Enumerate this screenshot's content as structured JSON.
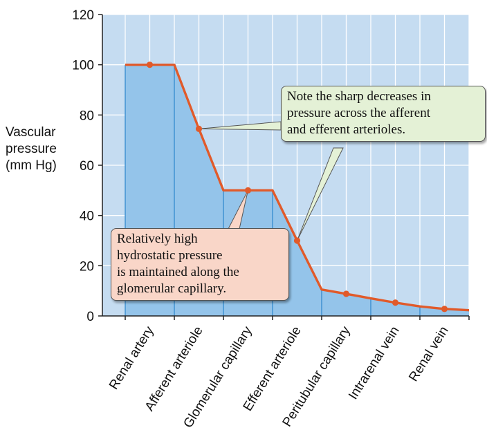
{
  "chart_data": {
    "type": "area",
    "ylabel": [
      "Vascular",
      "pressure",
      "(mm Hg)"
    ],
    "ylim": [
      0,
      120
    ],
    "yticks": [
      0,
      20,
      40,
      60,
      80,
      100,
      120
    ],
    "categories": [
      "Renal artery",
      "Afferent arteriole",
      "Glomerular capillary",
      "Efferent arteriole",
      "Peritubular capillary",
      "Intrarenal vein",
      "Renal vein"
    ],
    "points": [
      {
        "x": 0.0,
        "y": 100
      },
      {
        "x": 0.5,
        "y": 100
      },
      {
        "x": 1.0,
        "y": 100
      },
      {
        "x": 1.5,
        "y": 74.5
      },
      {
        "x": 2.0,
        "y": 50
      },
      {
        "x": 2.5,
        "y": 50
      },
      {
        "x": 3.0,
        "y": 50
      },
      {
        "x": 3.5,
        "y": 30
      },
      {
        "x": 4.0,
        "y": 10.5
      },
      {
        "x": 4.5,
        "y": 8.8
      },
      {
        "x": 5.0,
        "y": 7.0
      },
      {
        "x": 5.5,
        "y": 5.3
      },
      {
        "x": 6.0,
        "y": 3.8
      },
      {
        "x": 6.5,
        "y": 2.8
      },
      {
        "x": 7.0,
        "y": 2.3
      }
    ],
    "markers": [
      {
        "x": 0.5,
        "y": 100
      },
      {
        "x": 1.5,
        "y": 74.5
      },
      {
        "x": 2.5,
        "y": 50
      },
      {
        "x": 3.5,
        "y": 30
      },
      {
        "x": 4.5,
        "y": 8.8
      },
      {
        "x": 5.5,
        "y": 5.3
      },
      {
        "x": 6.5,
        "y": 2.8
      }
    ],
    "grid": true,
    "colors": {
      "plot_bg": "#c5dcf1",
      "area": "#94c4ea",
      "line": "#e15a2a",
      "grid": "#ffffff",
      "divider": "#3a8fd0"
    },
    "annotations": [
      {
        "lines": [
          "Note the sharp decreases in",
          "pressure across the afferent",
          "and efferent arterioles."
        ],
        "bg": "#e4f1d6"
      },
      {
        "lines": [
          "Relatively high",
          "hydrostatic pressure",
          "is maintained along the",
          "glomerular capillary."
        ],
        "bg": "#f9d6c8"
      }
    ]
  }
}
